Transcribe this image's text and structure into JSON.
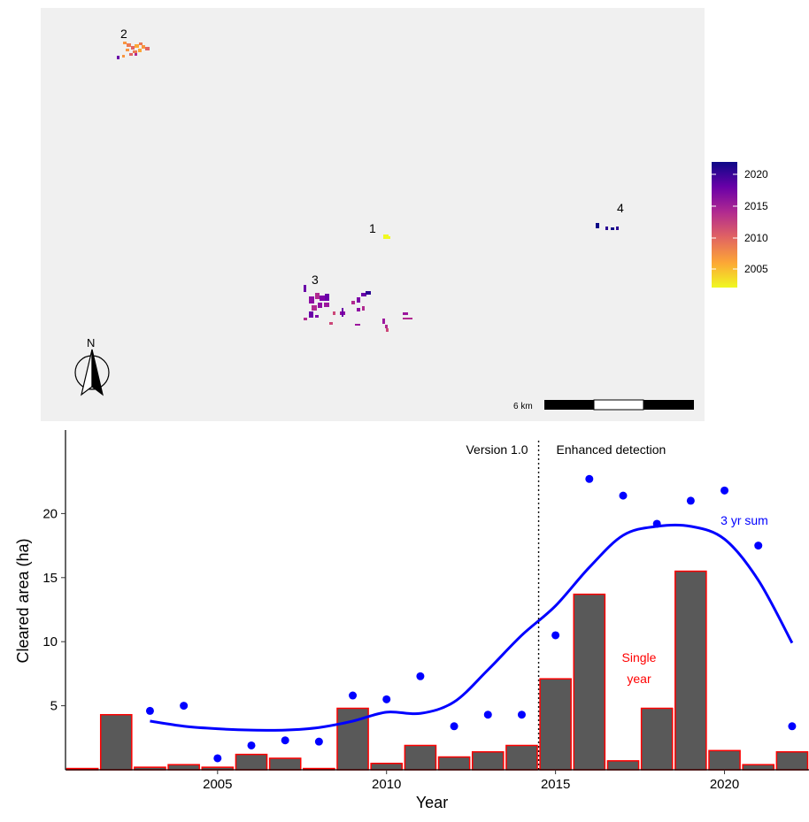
{
  "map": {
    "cluster_labels": [
      "1",
      "2",
      "3",
      "4"
    ],
    "north_label": "N",
    "scale_label": "6 km",
    "legend": {
      "ticks": [
        "2020",
        "2015",
        "2010",
        "2005"
      ],
      "colors": [
        "#f0f921",
        "#fca636",
        "#e16462",
        "#b12a90",
        "#6a00a8",
        "#0d0887"
      ]
    }
  },
  "chart_data": {
    "type": "bar",
    "xlabel": "Year",
    "ylabel": "Cleared area (ha)",
    "xlim": [
      2000.5,
      2022.5
    ],
    "ylim": [
      0,
      25
    ],
    "x_ticks": [
      2005,
      2010,
      2015,
      2020
    ],
    "y_ticks": [
      5,
      10,
      15,
      20
    ],
    "grid": false,
    "bars": {
      "name": "Single year",
      "years": [
        2001,
        2002,
        2003,
        2004,
        2005,
        2006,
        2007,
        2008,
        2009,
        2010,
        2011,
        2012,
        2013,
        2014,
        2015,
        2016,
        2017,
        2018,
        2019,
        2020,
        2021,
        2022
      ],
      "values": [
        0.1,
        4.3,
        0.2,
        0.4,
        0.2,
        1.2,
        0.9,
        0.1,
        4.8,
        0.5,
        1.9,
        1.0,
        1.4,
        1.9,
        7.1,
        13.7,
        0.7,
        4.8,
        15.5,
        1.5,
        0.4,
        1.4
      ],
      "fill": "#595959",
      "stroke": "#ff0000"
    },
    "points": {
      "name": "3 yr sum",
      "years": [
        2003,
        2004,
        2005,
        2006,
        2007,
        2008,
        2009,
        2010,
        2011,
        2012,
        2013,
        2014,
        2015,
        2016,
        2017,
        2018,
        2019,
        2020,
        2021,
        2022
      ],
      "values": [
        4.6,
        5.0,
        0.9,
        1.9,
        2.3,
        2.2,
        5.8,
        5.5,
        7.3,
        3.4,
        4.3,
        4.3,
        10.5,
        22.7,
        21.4,
        19.2,
        21.0,
        21.8,
        17.5,
        3.4
      ],
      "color": "#0000ff"
    },
    "smooth": {
      "years": [
        2003,
        2004,
        2005,
        2006,
        2007,
        2008,
        2009,
        2010,
        2011,
        2012,
        2013,
        2014,
        2015,
        2016,
        2017,
        2018,
        2019,
        2020,
        2021,
        2022
      ],
      "values": [
        3.8,
        3.4,
        3.2,
        3.1,
        3.1,
        3.3,
        3.8,
        4.5,
        4.4,
        5.3,
        7.8,
        10.5,
        12.8,
        15.8,
        18.3,
        19.0,
        19.0,
        18.0,
        14.8,
        9.9
      ],
      "color": "#0000ff"
    },
    "divider": {
      "x": 2014.5,
      "left_label": "Version 1.0",
      "right_label": "Enhanced detection"
    },
    "annotations": {
      "sum_label": "3 yr sum",
      "single_label_1": "Single",
      "single_label_2": "year"
    }
  }
}
